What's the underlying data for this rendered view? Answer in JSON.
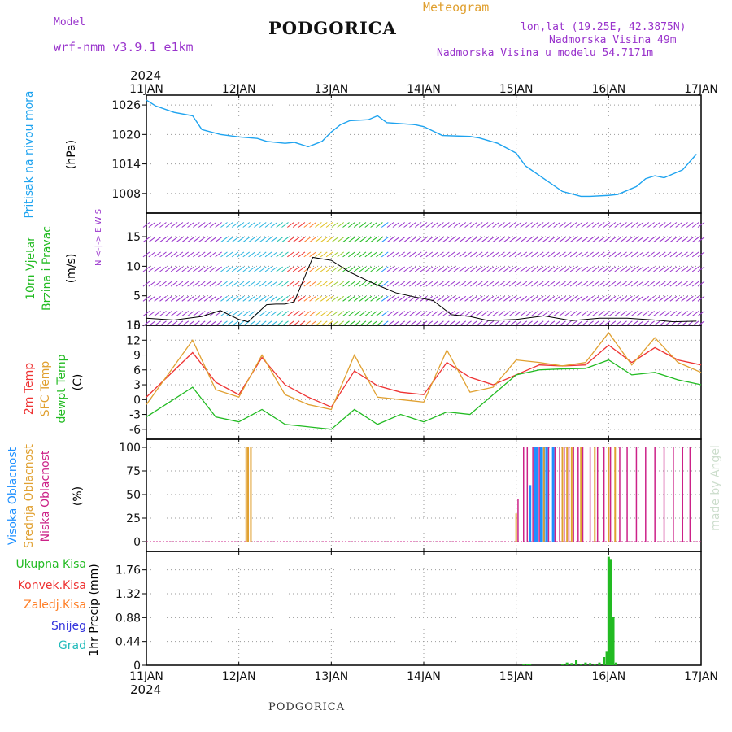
{
  "header": {
    "model_label": "Model",
    "model_name": "wrf-nmm_v3.9.1 e1km",
    "station": "PODGORICA",
    "product": "Meteogram",
    "lonlat": "lon,lat (19.25E, 42.3875N)",
    "elevation": "Nadmorska Visina 49m",
    "model_elevation": "Nadmorska Visina u modelu 54.7171m",
    "watermark": "made by Angel",
    "footer": "PODGORICA"
  },
  "colors": {
    "pressure": "#1ea3ef",
    "wind_label": "#22bb22",
    "wind_axis": "#9933cc",
    "temp_2m": "#ee3333",
    "temp_sfc": "#e0a030",
    "temp_dew": "#22bb22",
    "cloud_high": "#1e90ff",
    "cloud_mid": "#e0a030",
    "cloud_low": "#cc2288",
    "precip_total": "#22bb22",
    "precip_conv": "#ee3333",
    "precip_frz": "#ff7f27",
    "precip_snow": "#3333dd",
    "precip_grad": "#22bbbb"
  },
  "time_axis": {
    "year": "2024",
    "labels": [
      "11JAN",
      "12JAN",
      "13JAN",
      "14JAN",
      "15JAN",
      "16JAN",
      "17JAN"
    ]
  },
  "chart_data": [
    {
      "type": "line",
      "name": "pressure",
      "ylabel": "Pritisak na nivou mora",
      "unit": "(hPa)",
      "yticks": [
        "1026",
        "1020",
        "1014",
        "1008"
      ],
      "ylim": [
        1004,
        1028
      ],
      "x": [
        0,
        0.1,
        0.3,
        0.5,
        0.6,
        0.8,
        1.0,
        1.2,
        1.3,
        1.5,
        1.6,
        1.75,
        1.9,
        2.0,
        2.1,
        2.2,
        2.4,
        2.5,
        2.6,
        2.9,
        3.0,
        3.2,
        3.5,
        3.6,
        3.8,
        4.0,
        4.1,
        4.3,
        4.5,
        4.7,
        4.8,
        5.0,
        5.1,
        5.3,
        5.4,
        5.5,
        5.6,
        5.8,
        5.95
      ],
      "y": [
        1027,
        1025.8,
        1024.5,
        1023.8,
        1021,
        1020,
        1019.5,
        1019.2,
        1018.6,
        1018.2,
        1018.4,
        1017.5,
        1018.6,
        1020.5,
        1022,
        1022.8,
        1023,
        1023.8,
        1022.4,
        1022,
        1021.6,
        1019.8,
        1019.6,
        1019.3,
        1018.2,
        1016.2,
        1013.6,
        1011,
        1008.4,
        1007.4,
        1007.4,
        1007.6,
        1007.8,
        1009.4,
        1011,
        1011.6,
        1011.2,
        1012.8,
        1016
      ]
    },
    {
      "type": "scatter",
      "name": "wind",
      "ylabel": "10m Vjetar Brzina i Pravac",
      "unit": "(m/s)",
      "compass": "N <-|-> E W S",
      "yticks": [
        "15",
        "10",
        "5",
        "0"
      ],
      "ylim": [
        0,
        19
      ],
      "x": [
        0,
        0.3,
        0.6,
        0.8,
        1.0,
        1.1,
        1.3,
        1.4,
        1.5,
        1.6,
        1.8,
        2.0,
        2.2,
        2.4,
        2.5,
        2.7,
        2.9,
        3.1,
        3.3,
        3.5,
        3.7,
        4.0,
        4.3,
        4.6,
        4.9,
        5.2,
        5.5,
        5.7,
        5.95
      ],
      "y": [
        1.2,
        0.9,
        1.5,
        2.5,
        1.0,
        0.6,
        3.5,
        3.6,
        3.6,
        4.0,
        11.5,
        11.0,
        9.0,
        7.5,
        6.8,
        5.5,
        4.8,
        4.2,
        1.8,
        1.5,
        0.8,
        1.0,
        1.6,
        0.8,
        1.2,
        1.2,
        0.9,
        0.6,
        0.7
      ]
    },
    {
      "type": "line",
      "name": "temperature",
      "ylabel": "2m Temp SFC Temp dewpt Temp",
      "unit": "(C)",
      "yticks": [
        "15",
        "12",
        "9",
        "6",
        "3",
        "0",
        "-3",
        "-6"
      ],
      "ylim": [
        -8,
        15
      ],
      "x": [
        0,
        0.5,
        0.75,
        1.0,
        1.25,
        1.5,
        1.75,
        2.0,
        2.25,
        2.5,
        2.75,
        3.0,
        3.25,
        3.5,
        3.75,
        4.0,
        4.25,
        4.5,
        4.75,
        5.0,
        5.25,
        5.5,
        5.75,
        6.0
      ],
      "series": [
        {
          "name": "2m Temp",
          "values": [
            0.5,
            9.5,
            3.5,
            1.0,
            8.5,
            3.0,
            0.5,
            -1.5,
            5.8,
            2.8,
            1.5,
            1.0,
            7.5,
            4.5,
            3.0,
            5.0,
            7.0,
            6.8,
            7.0,
            11.0,
            7.5,
            10.5,
            8.0,
            7.0
          ]
        },
        {
          "name": "SFC Temp",
          "values": [
            -1.0,
            12.0,
            2.0,
            0.5,
            9.0,
            1.0,
            -1.0,
            -2.0,
            9.0,
            0.5,
            0.0,
            -0.5,
            10.0,
            1.5,
            2.5,
            8.0,
            7.5,
            6.8,
            7.5,
            13.5,
            7.0,
            12.5,
            7.5,
            5.5
          ]
        },
        {
          "name": "dewpt Temp",
          "values": [
            -3.5,
            2.5,
            -3.5,
            -4.5,
            -2.0,
            -5.0,
            -5.5,
            -6.0,
            -2.0,
            -5.0,
            -3.0,
            -4.5,
            -2.5,
            -3.0,
            1.0,
            5.0,
            6.0,
            6.2,
            6.3,
            8.0,
            5.0,
            5.5,
            4.0,
            3.0
          ]
        }
      ]
    },
    {
      "type": "bar",
      "name": "cloud",
      "ylabel": "Visoka Oblacnost Srednja Oblacnost Niska Oblacnost",
      "unit": "(%)",
      "yticks": [
        "100",
        "75",
        "50",
        "25",
        "0"
      ],
      "ylim": [
        0,
        100
      ],
      "series": [
        {
          "name": "Visoka Oblacnost",
          "x": [
            4.15,
            4.2,
            4.22,
            4.27,
            4.3,
            4.33,
            4.4
          ],
          "values": [
            60,
            100,
            100,
            100,
            100,
            100,
            100
          ]
        },
        {
          "name": "Srednja Oblacnost",
          "x": [
            1.08,
            1.1,
            1.13,
            4.0,
            4.3,
            4.5,
            4.55,
            4.6,
            4.7,
            4.85,
            5.0,
            5.07
          ],
          "values": [
            100,
            100,
            100,
            30,
            100,
            100,
            100,
            100,
            100,
            100,
            100,
            100
          ]
        },
        {
          "name": "Niska Oblacnost",
          "x": [
            4.02,
            4.08,
            4.12,
            4.18,
            4.25,
            4.35,
            4.42,
            4.47,
            4.52,
            4.57,
            4.62,
            4.67,
            4.72,
            4.8,
            4.88,
            4.95,
            5.02,
            5.12,
            5.2,
            5.3,
            5.4,
            5.5,
            5.6,
            5.7,
            5.8,
            5.88
          ],
          "values": [
            45,
            100,
            100,
            100,
            100,
            100,
            100,
            100,
            100,
            100,
            100,
            100,
            100,
            100,
            100,
            100,
            100,
            100,
            100,
            100,
            100,
            100,
            100,
            100,
            100,
            100
          ]
        }
      ]
    },
    {
      "type": "bar",
      "name": "precipitation",
      "ylabel": "1hr Precip",
      "unit": "(mm)",
      "yticks": [
        "1.76",
        "1.32",
        "0.88",
        "0.44",
        "0"
      ],
      "ylim": [
        0,
        2.1
      ],
      "legend": [
        "Ukupna Kisa",
        "Konvek.Kisa",
        "Zaledj.Kisa",
        "Snijeg",
        "Grad"
      ],
      "x": [
        4.08,
        4.12,
        4.15,
        4.5,
        4.55,
        4.6,
        4.65,
        4.7,
        4.75,
        4.8,
        4.85,
        4.9,
        4.95,
        4.98,
        5.0,
        5.02,
        5.05,
        5.08
      ],
      "values": [
        0.02,
        0.03,
        0.02,
        0.03,
        0.05,
        0.04,
        0.1,
        0.03,
        0.05,
        0.04,
        0.03,
        0.05,
        0.15,
        0.25,
        2.0,
        1.96,
        0.9,
        0.05
      ]
    }
  ]
}
